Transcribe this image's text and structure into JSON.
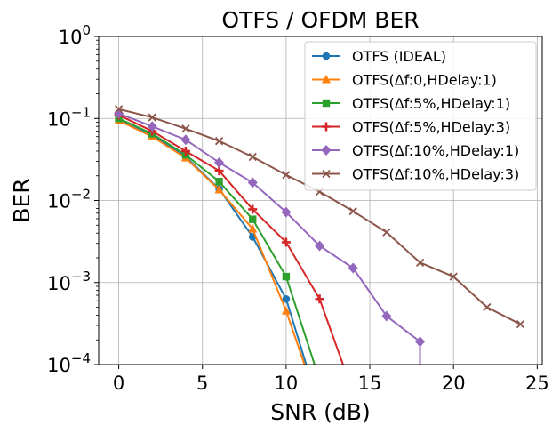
{
  "chart_data": {
    "type": "line",
    "title": "OTFS / OFDM BER",
    "xlabel": "SNR (dB)",
    "ylabel": "BER",
    "xscale": "linear",
    "yscale": "log",
    "xlim": [
      -1.2,
      25.3
    ],
    "ylim": [
      0.0001,
      1
    ],
    "xticks": [
      0,
      5,
      10,
      15,
      20,
      25
    ],
    "xtick_labels": [
      "0",
      "5",
      "10",
      "15",
      "20",
      "25"
    ],
    "yticks": [
      0.0001,
      0.001,
      0.01,
      0.1,
      1
    ],
    "ytick_labels": [
      {
        "base": "10",
        "exp": "−4"
      },
      {
        "base": "10",
        "exp": "−3"
      },
      {
        "base": "10",
        "exp": "−2"
      },
      {
        "base": "10",
        "exp": "−1"
      },
      {
        "base": "10",
        "exp": "0"
      }
    ],
    "grid": true,
    "legend_position": "top-right",
    "series": [
      {
        "name": "OTFS (IDEAL)",
        "color": "#1f77b4",
        "marker": "circle",
        "x": [
          0,
          2,
          4,
          6,
          8,
          10,
          11.2
        ],
        "y": [
          0.095,
          0.062,
          0.034,
          0.0138,
          0.0036,
          0.00063,
          0.0001
        ]
      },
      {
        "name": "OTFS(Δf:0,HDelay:1)",
        "color": "#ff7f0e",
        "marker": "triangle",
        "x": [
          0,
          2,
          4,
          6,
          8,
          10,
          11.1
        ],
        "y": [
          0.094,
          0.06,
          0.033,
          0.0135,
          0.0045,
          0.00045,
          0.0001
        ]
      },
      {
        "name": "OTFS(Δf:5%,HDelay:1)",
        "color": "#2ca02c",
        "marker": "square",
        "x": [
          0,
          2,
          4,
          6,
          8,
          10,
          11.7
        ],
        "y": [
          0.1,
          0.065,
          0.036,
          0.017,
          0.0059,
          0.00118,
          0.0001
        ]
      },
      {
        "name": "OTFS(Δf:5%,HDelay:3)",
        "color": "#d62728",
        "marker": "plus",
        "x": [
          0,
          2,
          4,
          6,
          8,
          10,
          12,
          13.4
        ],
        "y": [
          0.11,
          0.07,
          0.04,
          0.023,
          0.0078,
          0.0031,
          0.00063,
          0.0001
        ]
      },
      {
        "name": "OTFS(Δf:10%,HDelay:1)",
        "color": "#9467bd",
        "marker": "diamond",
        "x": [
          0,
          2,
          4,
          6,
          8,
          10,
          12,
          14,
          16,
          18,
          18
        ],
        "y": [
          0.115,
          0.08,
          0.055,
          0.029,
          0.0165,
          0.0072,
          0.0028,
          0.0015,
          0.00039,
          0.00019,
          0.0001
        ]
      },
      {
        "name": "OTFS(Δf:10%,HDelay:3)",
        "color": "#8c564b",
        "marker": "x",
        "x": [
          0,
          2,
          4,
          6,
          8,
          10,
          12,
          14,
          16,
          18,
          20,
          22,
          24
        ],
        "y": [
          0.13,
          0.103,
          0.075,
          0.053,
          0.034,
          0.0205,
          0.0128,
          0.0074,
          0.0041,
          0.00175,
          0.00118,
          0.0005,
          0.00031
        ]
      }
    ]
  }
}
